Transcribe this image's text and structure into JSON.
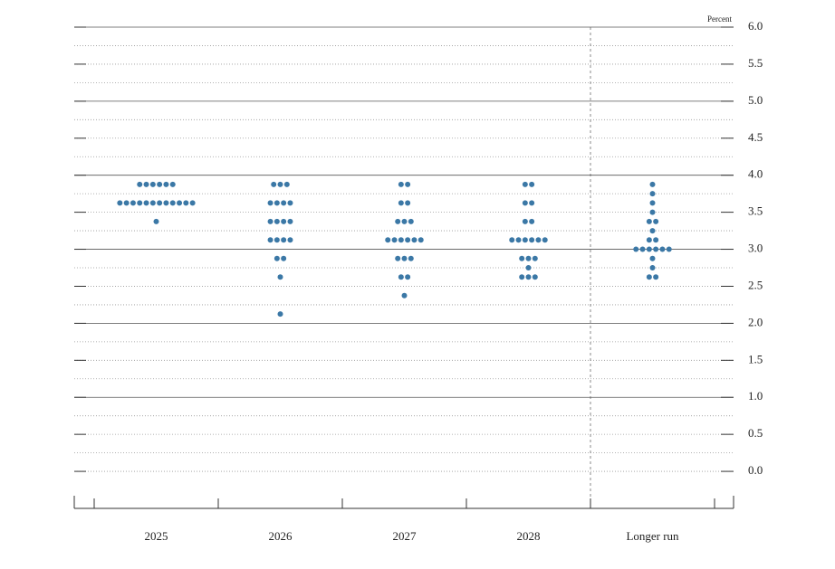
{
  "chart_data": {
    "type": "dot",
    "y_label": "Percent",
    "categories": [
      "2025",
      "2026",
      "2027",
      "2028",
      "Longer run"
    ],
    "values": [
      [
        3.875,
        3.875,
        3.875,
        3.875,
        3.875,
        3.875,
        3.625,
        3.625,
        3.625,
        3.625,
        3.625,
        3.625,
        3.625,
        3.625,
        3.625,
        3.625,
        3.625,
        3.625,
        3.375
      ],
      [
        3.875,
        3.875,
        3.875,
        3.625,
        3.625,
        3.625,
        3.625,
        3.375,
        3.375,
        3.375,
        3.375,
        3.125,
        3.125,
        3.125,
        3.125,
        2.875,
        2.875,
        2.625,
        2.125
      ],
      [
        3.875,
        3.875,
        3.625,
        3.625,
        3.375,
        3.375,
        3.375,
        3.125,
        3.125,
        3.125,
        3.125,
        3.125,
        3.125,
        2.875,
        2.875,
        2.875,
        2.625,
        2.625,
        2.375
      ],
      [
        3.875,
        3.875,
        3.625,
        3.625,
        3.375,
        3.375,
        3.125,
        3.125,
        3.125,
        3.125,
        3.125,
        3.125,
        2.875,
        2.875,
        2.875,
        2.75,
        2.625,
        2.625,
        2.625
      ],
      [
        3.875,
        3.75,
        3.625,
        3.5,
        3.375,
        3.375,
        3.25,
        3.125,
        3.125,
        3,
        3,
        3,
        3,
        3,
        3,
        2.875,
        2.75,
        2.625,
        2.625
      ]
    ],
    "color": "#3b78a6",
    "ylim": [
      -0.5,
      6
    ],
    "yticks": [
      {
        "value": 0,
        "label": "0.0"
      },
      {
        "value": 0.5,
        "label": "0.5"
      },
      {
        "value": 1,
        "label": "1.0"
      },
      {
        "value": 1.5,
        "label": "1.5"
      },
      {
        "value": 2,
        "label": "2.0"
      },
      {
        "value": 2.5,
        "label": "2.5"
      },
      {
        "value": 3,
        "label": "3.0"
      },
      {
        "value": 3.5,
        "label": "3.5"
      },
      {
        "value": 4,
        "label": "4.0"
      },
      {
        "value": 4.5,
        "label": "4.5"
      },
      {
        "value": 5,
        "label": "5.0"
      },
      {
        "value": 5.5,
        "label": "5.5"
      },
      {
        "value": 6,
        "label": "6.0"
      }
    ],
    "ygrid_major": [
      1,
      2,
      3,
      4,
      5,
      6
    ],
    "ygrid_minor": [
      0,
      0.25,
      0.5,
      0.75,
      1.25,
      1.5,
      1.75,
      2.25,
      2.5,
      2.75,
      3.25,
      3.5,
      3.75,
      4.25,
      4.5,
      4.75,
      5.25,
      5.5,
      5.75
    ]
  }
}
